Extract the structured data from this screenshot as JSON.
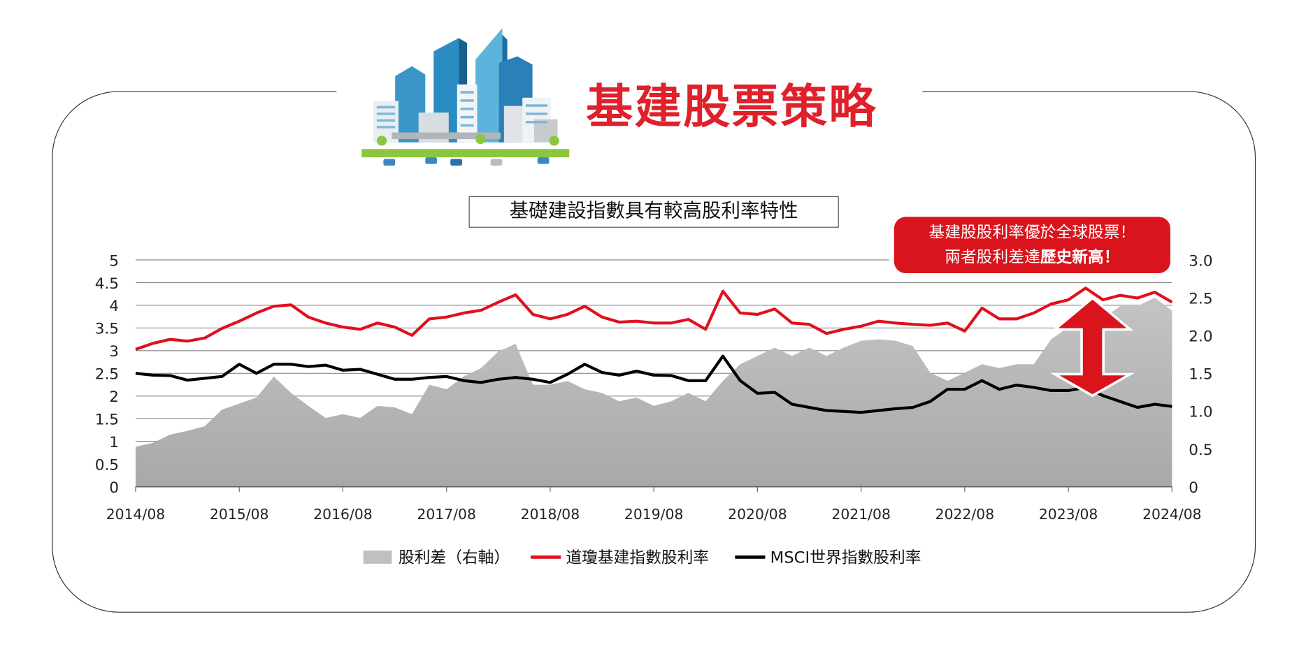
{
  "header": {
    "title": "基建股票策略",
    "subtitle": "基礎建設指數具有較高股利率特性"
  },
  "callout": {
    "line1": "基建股股利率優於全球股票！",
    "line2_normal": "兩者股利差達",
    "line2_bold": "歷史新高！"
  },
  "colors": {
    "accent": "#e0202a",
    "callout_bg": "#d9141c",
    "red_series": "#e0101c",
    "black_series": "#000000",
    "area": "#b4b4b4"
  },
  "chart_data": {
    "type": "line",
    "title": "基礎建設指數具有較高股利率特性",
    "x_tick_labels": [
      "2014/08",
      "2015/08",
      "2016/08",
      "2017/08",
      "2018/08",
      "2019/08",
      "2020/08",
      "2021/08",
      "2022/08",
      "2023/08",
      "2024/08"
    ],
    "y_left": {
      "ylim": [
        0,
        5
      ],
      "ticks": [
        "0",
        "0.5",
        "1",
        "1.5",
        "2",
        "2.5",
        "3",
        "3.5",
        "4",
        "4.5",
        "5"
      ]
    },
    "y_right": {
      "ylim": [
        0,
        3
      ],
      "ticks": [
        "0",
        "0.5",
        "1.0",
        "1.5",
        "2.0",
        "2.5",
        "3.0"
      ]
    },
    "grid": true,
    "legend_position": "bottom",
    "x": [
      "2014-08",
      "2014-10",
      "2014-12",
      "2015-02",
      "2015-04",
      "2015-06",
      "2015-08",
      "2015-10",
      "2015-12",
      "2016-02",
      "2016-04",
      "2016-06",
      "2016-08",
      "2016-10",
      "2016-12",
      "2017-02",
      "2017-04",
      "2017-06",
      "2017-08",
      "2017-10",
      "2017-12",
      "2018-02",
      "2018-04",
      "2018-06",
      "2018-08",
      "2018-10",
      "2018-12",
      "2019-02",
      "2019-04",
      "2019-06",
      "2019-08",
      "2019-10",
      "2019-12",
      "2020-02",
      "2020-04",
      "2020-06",
      "2020-08",
      "2020-10",
      "2020-12",
      "2021-02",
      "2021-04",
      "2021-06",
      "2021-08",
      "2021-10",
      "2021-12",
      "2022-02",
      "2022-04",
      "2022-06",
      "2022-08",
      "2022-10",
      "2022-12",
      "2023-02",
      "2023-04",
      "2023-06",
      "2023-08",
      "2023-10",
      "2023-12",
      "2024-02",
      "2024-04",
      "2024-06",
      "2024-08"
    ],
    "series": [
      {
        "name": "股利差（右軸）",
        "type": "area",
        "axis": "right",
        "values": [
          0.53,
          0.58,
          0.69,
          0.74,
          0.8,
          1.02,
          1.1,
          1.18,
          1.46,
          1.24,
          1.07,
          0.91,
          0.96,
          0.91,
          1.07,
          1.05,
          0.96,
          1.35,
          1.29,
          1.46,
          1.57,
          1.79,
          1.89,
          1.35,
          1.35,
          1.4,
          1.29,
          1.24,
          1.13,
          1.18,
          1.07,
          1.13,
          1.24,
          1.13,
          1.4,
          1.62,
          1.73,
          1.84,
          1.73,
          1.84,
          1.73,
          1.84,
          1.93,
          1.95,
          1.93,
          1.86,
          1.51,
          1.4,
          1.51,
          1.62,
          1.57,
          1.62,
          1.62,
          1.95,
          2.11,
          2.28,
          2.22,
          2.39,
          2.39,
          2.5,
          2.33
        ]
      },
      {
        "name": "道瓊基建指數股利率",
        "type": "line",
        "axis": "left",
        "values": [
          3.03,
          3.16,
          3.25,
          3.21,
          3.28,
          3.49,
          3.65,
          3.83,
          3.98,
          4.01,
          3.74,
          3.61,
          3.52,
          3.47,
          3.61,
          3.52,
          3.34,
          3.7,
          3.74,
          3.83,
          3.89,
          4.07,
          4.23,
          3.8,
          3.7,
          3.8,
          3.98,
          3.74,
          3.63,
          3.65,
          3.61,
          3.61,
          3.69,
          3.47,
          4.31,
          3.83,
          3.8,
          3.92,
          3.61,
          3.58,
          3.38,
          3.47,
          3.54,
          3.65,
          3.61,
          3.58,
          3.56,
          3.61,
          3.43,
          3.94,
          3.7,
          3.7,
          3.83,
          4.03,
          4.12,
          4.38,
          4.12,
          4.22,
          4.16,
          4.29,
          4.07
        ]
      },
      {
        "name": "MSCI世界指數股利率",
        "type": "line",
        "axis": "left",
        "values": [
          2.5,
          2.46,
          2.45,
          2.35,
          2.39,
          2.43,
          2.7,
          2.5,
          2.7,
          2.7,
          2.65,
          2.68,
          2.57,
          2.59,
          2.48,
          2.37,
          2.37,
          2.41,
          2.43,
          2.34,
          2.3,
          2.37,
          2.41,
          2.37,
          2.3,
          2.48,
          2.7,
          2.52,
          2.46,
          2.55,
          2.46,
          2.45,
          2.34,
          2.34,
          2.88,
          2.34,
          2.06,
          2.08,
          1.82,
          1.75,
          1.68,
          1.66,
          1.64,
          1.68,
          1.72,
          1.75,
          1.88,
          2.15,
          2.15,
          2.34,
          2.15,
          2.24,
          2.19,
          2.12,
          2.12,
          2.19,
          2.01,
          1.88,
          1.75,
          1.82,
          1.77
        ]
      }
    ]
  }
}
